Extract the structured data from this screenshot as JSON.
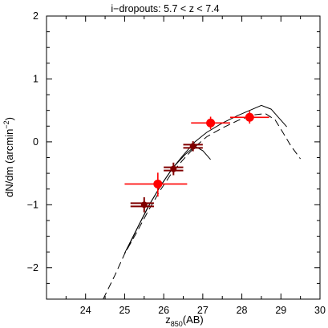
{
  "chart_data": {
    "type": "scatter",
    "title": "i−dropouts:  5.7 < z < 7.4",
    "xlabel_main": "z",
    "xlabel_sub": "850",
    "xlabel_tail": "(AB)",
    "ylabel_main": "dN/dm (arcmin",
    "ylabel_sup": "−2",
    "ylabel_tail": ")",
    "xlim": [
      23,
      30
    ],
    "ylim": [
      -2.5,
      2
    ],
    "x_ticks": [
      24,
      25,
      26,
      27,
      28,
      29,
      30
    ],
    "x_tick_labels": [
      "24",
      "25",
      "26",
      "27",
      "28",
      "29",
      "30"
    ],
    "y_ticks": [
      -2,
      -1,
      0,
      1,
      2
    ],
    "y_tick_labels": [
      "−2",
      "−1",
      "0",
      "1",
      "2"
    ],
    "series": [
      {
        "color": "#ff0000",
        "marker": "large-circle",
        "points": [
          {
            "x": 25.85,
            "y": -0.67,
            "xerr": [
              0.85,
              0.75
            ],
            "yerr": [
              0.2,
              0.18
            ]
          },
          {
            "x": 27.2,
            "y": 0.3,
            "xerr": [
              0.5,
              0.5
            ],
            "yerr": [
              0.1,
              0.1
            ]
          },
          {
            "x": 28.2,
            "y": 0.39,
            "xerr": [
              0.5,
              0.5
            ],
            "yerr": [
              0.1,
              0.1
            ]
          }
        ]
      },
      {
        "color": "#800000",
        "marker": "small-circle",
        "points": [
          {
            "x": 25.5,
            "y": -1.0,
            "xerr": [
              0.35,
              0.25
            ],
            "yerr": [
              0.12,
              0.12
            ],
            "double_bar": true
          },
          {
            "x": 26.25,
            "y": -0.43,
            "xerr": [
              0.25,
              0.25
            ],
            "yerr": [
              0.1,
              0.1
            ],
            "double_bar": true
          },
          {
            "x": 26.75,
            "y": -0.07,
            "xerr": [
              0.25,
              0.25
            ],
            "yerr": [
              0.08,
              0.08
            ],
            "double_bar": true
          }
        ]
      }
    ],
    "curves": [
      {
        "style": "dashed",
        "points": [
          [
            24.45,
            -2.5
          ],
          [
            24.75,
            -2.12
          ],
          [
            25.0,
            -1.78
          ],
          [
            25.3,
            -1.45
          ],
          [
            25.6,
            -1.1
          ],
          [
            25.9,
            -0.78
          ],
          [
            26.2,
            -0.5
          ],
          [
            26.5,
            -0.28
          ],
          [
            26.8,
            -0.08
          ],
          [
            27.1,
            0.08
          ],
          [
            27.5,
            0.22
          ],
          [
            27.9,
            0.34
          ],
          [
            28.3,
            0.43
          ],
          [
            28.6,
            0.45
          ],
          [
            28.85,
            0.35
          ],
          [
            29.05,
            0.15
          ],
          [
            29.25,
            -0.06
          ],
          [
            29.5,
            -0.27
          ]
        ]
      },
      {
        "style": "solid",
        "points": [
          [
            25.0,
            -1.77
          ],
          [
            25.3,
            -1.4
          ],
          [
            25.6,
            -1.03
          ],
          [
            25.9,
            -0.72
          ],
          [
            26.2,
            -0.44
          ],
          [
            26.5,
            -0.21
          ],
          [
            26.8,
            0.0
          ],
          [
            27.1,
            0.15
          ],
          [
            27.5,
            0.3
          ],
          [
            27.9,
            0.42
          ],
          [
            28.2,
            0.5
          ],
          [
            28.5,
            0.58
          ],
          [
            28.75,
            0.52
          ],
          [
            28.95,
            0.38
          ],
          [
            29.15,
            0.24
          ]
        ]
      },
      {
        "style": "solid",
        "points": [
          [
            25.05,
            -1.72
          ],
          [
            25.35,
            -1.34
          ],
          [
            25.65,
            -0.98
          ],
          [
            25.95,
            -0.67
          ],
          [
            26.25,
            -0.4
          ],
          [
            26.55,
            -0.2
          ],
          [
            26.8,
            -0.07
          ],
          [
            27.0,
            -0.14
          ],
          [
            27.2,
            -0.28
          ]
        ]
      }
    ]
  }
}
